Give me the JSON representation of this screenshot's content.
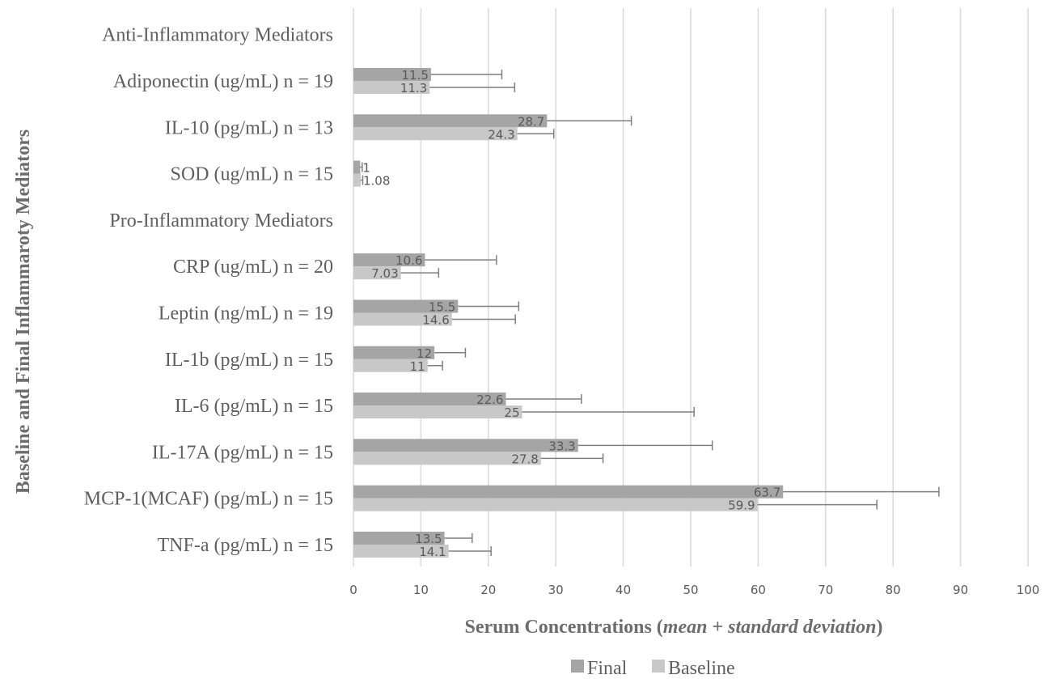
{
  "chart_data": {
    "type": "bar",
    "orientation": "horizontal",
    "categories": [
      "Anti-Inflammatory Mediators",
      "Adiponectin (ug/mL) n = 19",
      "IL-10 (pg/mL) n = 13",
      "SOD (ug/mL) n = 15",
      "Pro-Inflammatory Mediators",
      "CRP (ug/mL) n = 20",
      "Leptin (ng/mL) n = 19",
      "IL-1b (pg/mL) n = 15",
      "IL-6 (pg/mL) n = 15",
      "IL-17A (pg/mL) n = 15",
      "MCP-1(MCAF) (pg/mL) n = 15",
      "TNF-a (pg/mL) n = 15"
    ],
    "series": [
      {
        "name": "Final",
        "color": "#a5a5a5",
        "values": [
          null,
          11.5,
          28.7,
          1,
          null,
          10.6,
          15.5,
          12,
          22.6,
          33.3,
          63.7,
          13.5
        ],
        "labels": [
          "",
          "11.5",
          "28.7",
          "1",
          "",
          "10.6",
          "15.5",
          "12",
          "22.6",
          "33.3",
          "63.7",
          "13.5"
        ],
        "error": [
          null,
          10.5,
          12.5,
          0.3,
          null,
          10.6,
          9,
          4.6,
          11.2,
          19.9,
          23.1,
          4.1
        ]
      },
      {
        "name": "Baseline",
        "color": "#c8c8c8",
        "values": [
          null,
          11.3,
          24.3,
          1.08,
          null,
          7.03,
          14.6,
          11,
          25,
          27.8,
          59.9,
          14.1
        ],
        "labels": [
          "",
          "11.3",
          "24.3",
          "1.08",
          "",
          "7.03",
          "14.6",
          "11",
          "25",
          "27.8",
          "59.9",
          "14.1"
        ],
        "error": [
          null,
          12.6,
          5.4,
          0.3,
          null,
          5.6,
          9.4,
          2.2,
          25.5,
          9.2,
          17.7,
          6.3
        ]
      }
    ],
    "xlabel_parts": [
      "Serum Concentrations (",
      "mean",
      " + ",
      "standard deviation",
      ")"
    ],
    "ylabel": "Baseline and Final Inflammaroty Mediators",
    "xlim": [
      0,
      100
    ],
    "xticks": [
      0,
      10,
      20,
      30,
      40,
      50,
      60,
      70,
      80,
      90,
      100
    ],
    "grid": "vertical",
    "legend": "bottom-center",
    "label_color": "#595959",
    "gridline_color": "#d9d9d9",
    "errorbar_color": "#7f7f7f"
  }
}
